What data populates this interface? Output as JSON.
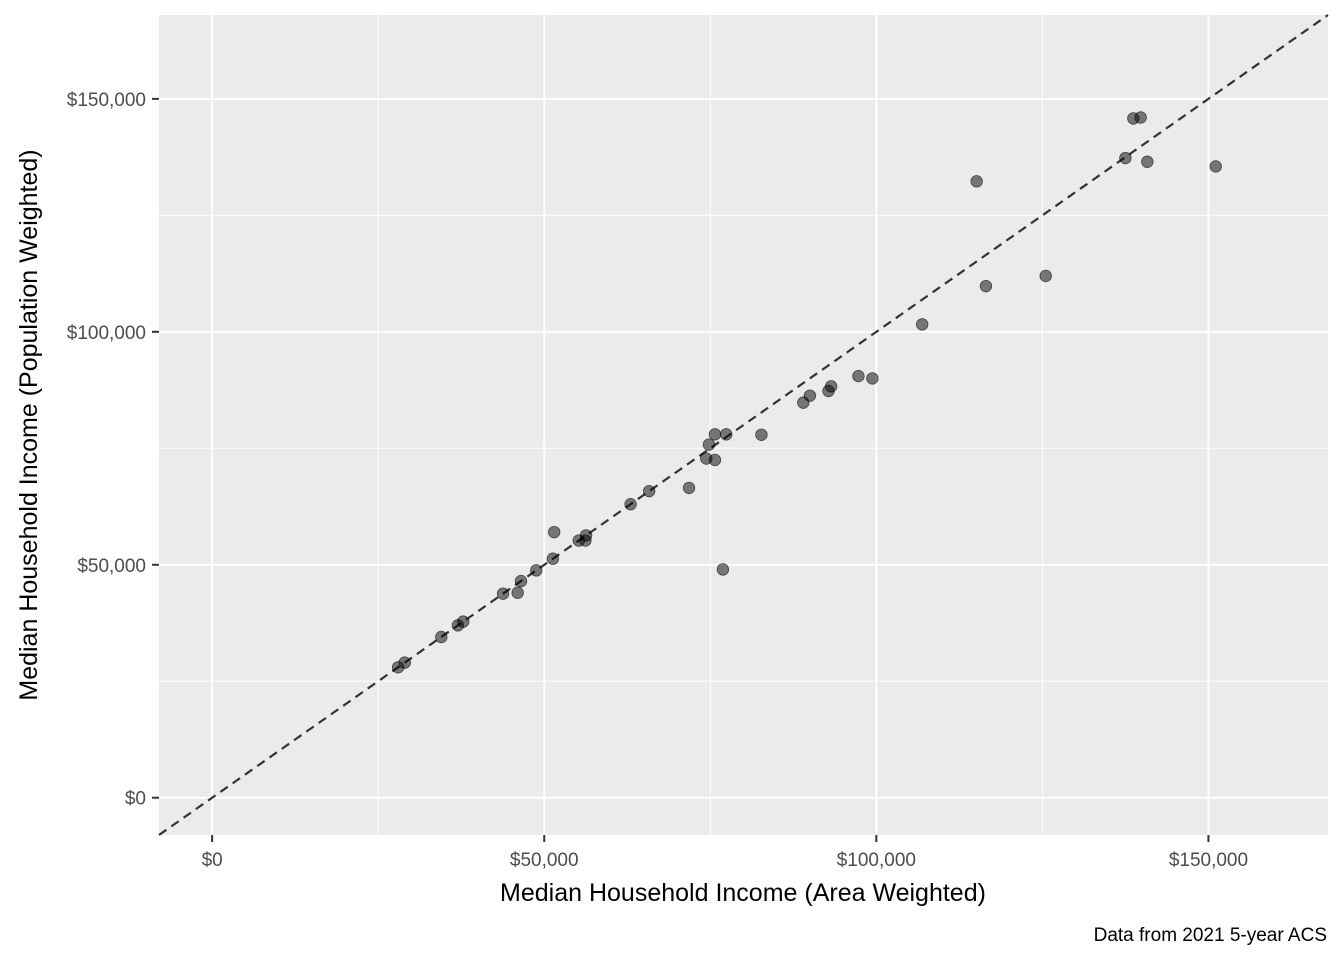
{
  "chart_data": {
    "type": "scatter",
    "xlabel": "Median Household Income (Area Weighted)",
    "ylabel": "Median Household Income (Population Weighted)",
    "caption": "Data from 2021 5-year ACS",
    "xlim": [
      -8000,
      168000
    ],
    "ylim": [
      -8000,
      168000
    ],
    "x_ticks": [
      {
        "value": 0,
        "label": "$0"
      },
      {
        "value": 50000,
        "label": "$50,000"
      },
      {
        "value": 100000,
        "label": "$100,000"
      },
      {
        "value": 150000,
        "label": "$150,000"
      }
    ],
    "y_ticks": [
      {
        "value": 0,
        "label": "$0"
      },
      {
        "value": 50000,
        "label": "$50,000"
      },
      {
        "value": 100000,
        "label": "$100,000"
      },
      {
        "value": 150000,
        "label": "$150,000"
      }
    ],
    "reference_line": {
      "slope": 1,
      "intercept": 0,
      "style": "dashed"
    },
    "grid": true,
    "panel_background": "#ebebeb",
    "grid_color": "#ffffff",
    "point_color": "#000000",
    "point_opacity": 0.5,
    "points": [
      {
        "x": 28000,
        "y": 28000
      },
      {
        "x": 29000,
        "y": 29000
      },
      {
        "x": 34500,
        "y": 34500
      },
      {
        "x": 37000,
        "y": 37000
      },
      {
        "x": 37800,
        "y": 37800
      },
      {
        "x": 43800,
        "y": 43800
      },
      {
        "x": 46000,
        "y": 44000
      },
      {
        "x": 46500,
        "y": 46500
      },
      {
        "x": 48800,
        "y": 48800
      },
      {
        "x": 51300,
        "y": 51300
      },
      {
        "x": 51500,
        "y": 57000
      },
      {
        "x": 55200,
        "y": 55200
      },
      {
        "x": 56200,
        "y": 55200
      },
      {
        "x": 56300,
        "y": 56300
      },
      {
        "x": 63000,
        "y": 63000
      },
      {
        "x": 65800,
        "y": 65800
      },
      {
        "x": 71800,
        "y": 66500
      },
      {
        "x": 74400,
        "y": 72800
      },
      {
        "x": 74800,
        "y": 75800
      },
      {
        "x": 75700,
        "y": 78000
      },
      {
        "x": 75700,
        "y": 72500
      },
      {
        "x": 76900,
        "y": 49000
      },
      {
        "x": 77400,
        "y": 78000
      },
      {
        "x": 82700,
        "y": 77900
      },
      {
        "x": 89000,
        "y": 84800
      },
      {
        "x": 90000,
        "y": 86300
      },
      {
        "x": 92800,
        "y": 87300
      },
      {
        "x": 93200,
        "y": 88300
      },
      {
        "x": 97300,
        "y": 90500
      },
      {
        "x": 99400,
        "y": 90000
      },
      {
        "x": 106900,
        "y": 101600
      },
      {
        "x": 115100,
        "y": 132300
      },
      {
        "x": 116500,
        "y": 109800
      },
      {
        "x": 125500,
        "y": 112000
      },
      {
        "x": 137500,
        "y": 137300
      },
      {
        "x": 138700,
        "y": 145800
      },
      {
        "x": 139800,
        "y": 146000
      },
      {
        "x": 140800,
        "y": 136500
      },
      {
        "x": 151100,
        "y": 135500
      }
    ]
  }
}
